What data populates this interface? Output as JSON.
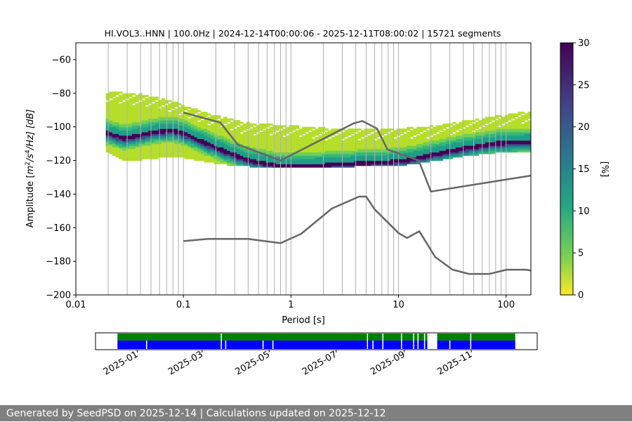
{
  "chart_data": [
    {
      "type": "heatmap",
      "title": "HI.VOL3..HNN | 100.0Hz | 2024-12-14T00:00:06 - 2025-12-11T08:00:02 | 15721 segments",
      "xlabel": "Period [s]",
      "ylabel_prefix": "Amplitude [",
      "ylabel_math": "m",
      "ylabel_exp1": "2",
      "ylabel_mid": "/s",
      "ylabel_exp2": "4",
      "ylabel_suffix": "/Hz] [dB]",
      "x_scale": "log",
      "xlim": [
        0.01,
        170
      ],
      "ylim": [
        -200,
        -50
      ],
      "x_ticks": [
        {
          "value": 0.01,
          "label": "0.01"
        },
        {
          "value": 0.1,
          "label": "0.1"
        },
        {
          "value": 1,
          "label": "1"
        },
        {
          "value": 10,
          "label": "10"
        },
        {
          "value": 100,
          "label": "100"
        }
      ],
      "y_ticks": [
        {
          "value": -60,
          "label": "−60"
        },
        {
          "value": -80,
          "label": "−80"
        },
        {
          "value": -100,
          "label": "−100"
        },
        {
          "value": -120,
          "label": "−120"
        },
        {
          "value": -140,
          "label": "−140"
        },
        {
          "value": -160,
          "label": "−160"
        },
        {
          "value": -180,
          "label": "−180"
        },
        {
          "value": -200,
          "label": "−200"
        }
      ],
      "grid": "vertical at periods",
      "colorbar": {
        "label": "[%]",
        "range": [
          0,
          30
        ],
        "ticks": [
          {
            "value": 0,
            "label": "0"
          },
          {
            "value": 5,
            "label": "5"
          },
          {
            "value": 10,
            "label": "10"
          },
          {
            "value": 15,
            "label": "15"
          },
          {
            "value": 20,
            "label": "20"
          },
          {
            "value": 25,
            "label": "25"
          },
          {
            "value": 30,
            "label": "30"
          }
        ]
      },
      "density_ridge": {
        "period": [
          0.019,
          0.028,
          0.04,
          0.06,
          0.08,
          0.1,
          0.15,
          0.25,
          0.4,
          0.7,
          1.2,
          2,
          4,
          7,
          12,
          20,
          40,
          80,
          170
        ],
        "median_db": [
          -102.5,
          -106,
          -104,
          -101.8,
          -101.5,
          -103,
          -108,
          -114,
          -119,
          -122,
          -122.5,
          -122,
          -121,
          -120.5,
          -119,
          -116,
          -112,
          -109,
          -108
        ],
        "lower_envelope_db": [
          -114,
          -119.5,
          -119,
          -118,
          -118,
          -118,
          -120,
          -122,
          -123,
          -124,
          -124,
          -124,
          -123,
          -123,
          -122,
          -120,
          -117,
          -115,
          -114
        ],
        "upper_envelope_db": [
          -80,
          -81,
          -82,
          -84,
          -86,
          -89,
          -92,
          -96,
          -99,
          -100,
          -101,
          -102,
          -103,
          -102,
          -102,
          -101,
          -98,
          -95,
          -92
        ]
      },
      "series": [
        {
          "period": [
            0.1,
            0.22,
            0.32,
            0.8,
            3.8,
            4.6,
            6.3,
            7.9,
            15.4,
            20,
            170
          ],
          "db": [
            -91.5,
            -97.4,
            -110.5,
            -120,
            -98,
            -96.5,
            -101,
            -113.5,
            -120,
            -138.5,
            -129
          ]
        },
        {
          "period": [
            0.1,
            0.17,
            0.4,
            0.8,
            1.24,
            2.4,
            4.3,
            5,
            6,
            10,
            12,
            15.6,
            21.9,
            31.6,
            45,
            70,
            101,
            154,
            170
          ],
          "db": [
            -168,
            -166.7,
            -166.7,
            -169.2,
            -163.7,
            -148.6,
            -141.5,
            -141.5,
            -149.1,
            -163.2,
            -166.1,
            -162.1,
            -177.4,
            -184.9,
            -187.5,
            -187.5,
            -185,
            -185,
            -185.5
          ]
        }
      ]
    },
    {
      "type": "timeline",
      "date_range": [
        "2024-12-14",
        "2025-12-11"
      ],
      "xlim": [
        "2024-11-24",
        "2025-12-31"
      ],
      "x_ticks": [
        {
          "date": "2025-01-01",
          "label": "2025-01"
        },
        {
          "date": "2025-03-01",
          "label": "2025-03"
        },
        {
          "date": "2025-05-01",
          "label": "2025-05"
        },
        {
          "date": "2025-07-01",
          "label": "2025-07"
        },
        {
          "date": "2025-09-01",
          "label": "2025-09"
        },
        {
          "date": "2025-11-01",
          "label": "2025-11"
        }
      ],
      "series": [
        {
          "name": "top",
          "color": "#008000",
          "gaps": [
            [
              "2025-03-18",
              "2025-03-19"
            ],
            [
              "2025-07-29",
              "2025-07-30"
            ],
            [
              "2025-08-12",
              "2025-08-13"
            ],
            [
              "2025-08-29",
              "2025-08-30"
            ],
            [
              "2025-09-09",
              "2025-09-10"
            ],
            [
              "2025-09-13",
              "2025-09-14"
            ],
            [
              "2025-09-19",
              "2025-09-20"
            ],
            [
              "2025-09-22",
              "2025-10-01"
            ],
            [
              "2025-10-31",
              "2025-11-01"
            ]
          ]
        },
        {
          "name": "bottom",
          "color": "#0000ff",
          "gaps": [
            [
              "2025-01-09",
              "2025-01-10"
            ],
            [
              "2025-03-18",
              "2025-03-19"
            ],
            [
              "2025-03-22",
              "2025-03-23"
            ],
            [
              "2025-04-25",
              "2025-04-26"
            ],
            [
              "2025-05-04",
              "2025-05-05"
            ],
            [
              "2025-07-29",
              "2025-07-30"
            ],
            [
              "2025-08-03",
              "2025-08-04"
            ],
            [
              "2025-08-12",
              "2025-08-13"
            ],
            [
              "2025-08-29",
              "2025-08-30"
            ],
            [
              "2025-09-09",
              "2025-09-10"
            ],
            [
              "2025-09-13",
              "2025-09-14"
            ],
            [
              "2025-09-19",
              "2025-09-20"
            ],
            [
              "2025-09-22",
              "2025-10-01"
            ],
            [
              "2025-10-12",
              "2025-10-13"
            ],
            [
              "2025-10-31",
              "2025-11-01"
            ]
          ]
        }
      ]
    }
  ],
  "colors": {
    "curve": "#666666",
    "grid": "#b0b0b0",
    "footer_bg": "#808080"
  },
  "footer": {
    "text": "Generated by SeedPSD on 2025-12-14 | Calculations updated on 2025-12-12"
  }
}
